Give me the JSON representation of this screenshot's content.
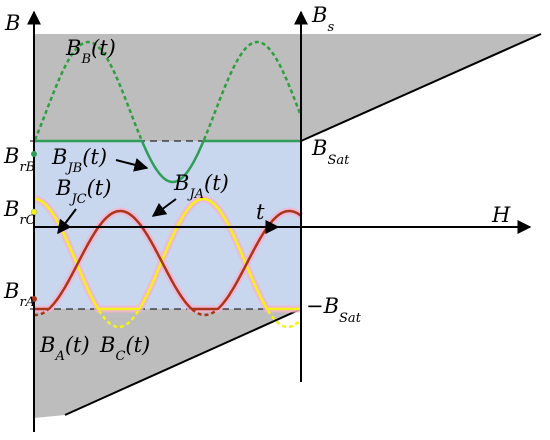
{
  "colors": {
    "gray_region": "#bdbdbd",
    "blue_region": "#c8d6ee",
    "pink_glow": "#f7b3cf",
    "green": "#2e9e3e",
    "green_solid": "#2f9c58",
    "yellow": "#f2f21a",
    "red_brown": "#a8361a",
    "axis": "#000000"
  },
  "labels": {
    "B": {
      "main": "B"
    },
    "Bs": {
      "main": "B",
      "sub": "s"
    },
    "H": {
      "main": "H"
    },
    "t": {
      "main": "t"
    },
    "BSat": {
      "main": "B",
      "sub": "Sat"
    },
    "negBSat": {
      "main": "−B",
      "sub": "Sat"
    },
    "BrB": {
      "main": "B",
      "sub": "rB"
    },
    "BrC": {
      "main": "B",
      "sub": "rC"
    },
    "BrA": {
      "main": "B",
      "sub": "rA"
    },
    "BBt": {
      "main": "B",
      "sub": "B",
      "arg": "(t)"
    },
    "BJBt": {
      "main": "B",
      "sub": "JB",
      "arg": "(t)"
    },
    "BJCt": {
      "main": "B",
      "sub": "JC",
      "arg": "(t)"
    },
    "BJAt": {
      "main": "B",
      "sub": "JA",
      "arg": "(t)"
    },
    "BAt": {
      "main": "B",
      "sub": "A",
      "arg": "(t)"
    },
    "BCt": {
      "main": "B",
      "sub": "C",
      "arg": "(t)"
    }
  }
}
